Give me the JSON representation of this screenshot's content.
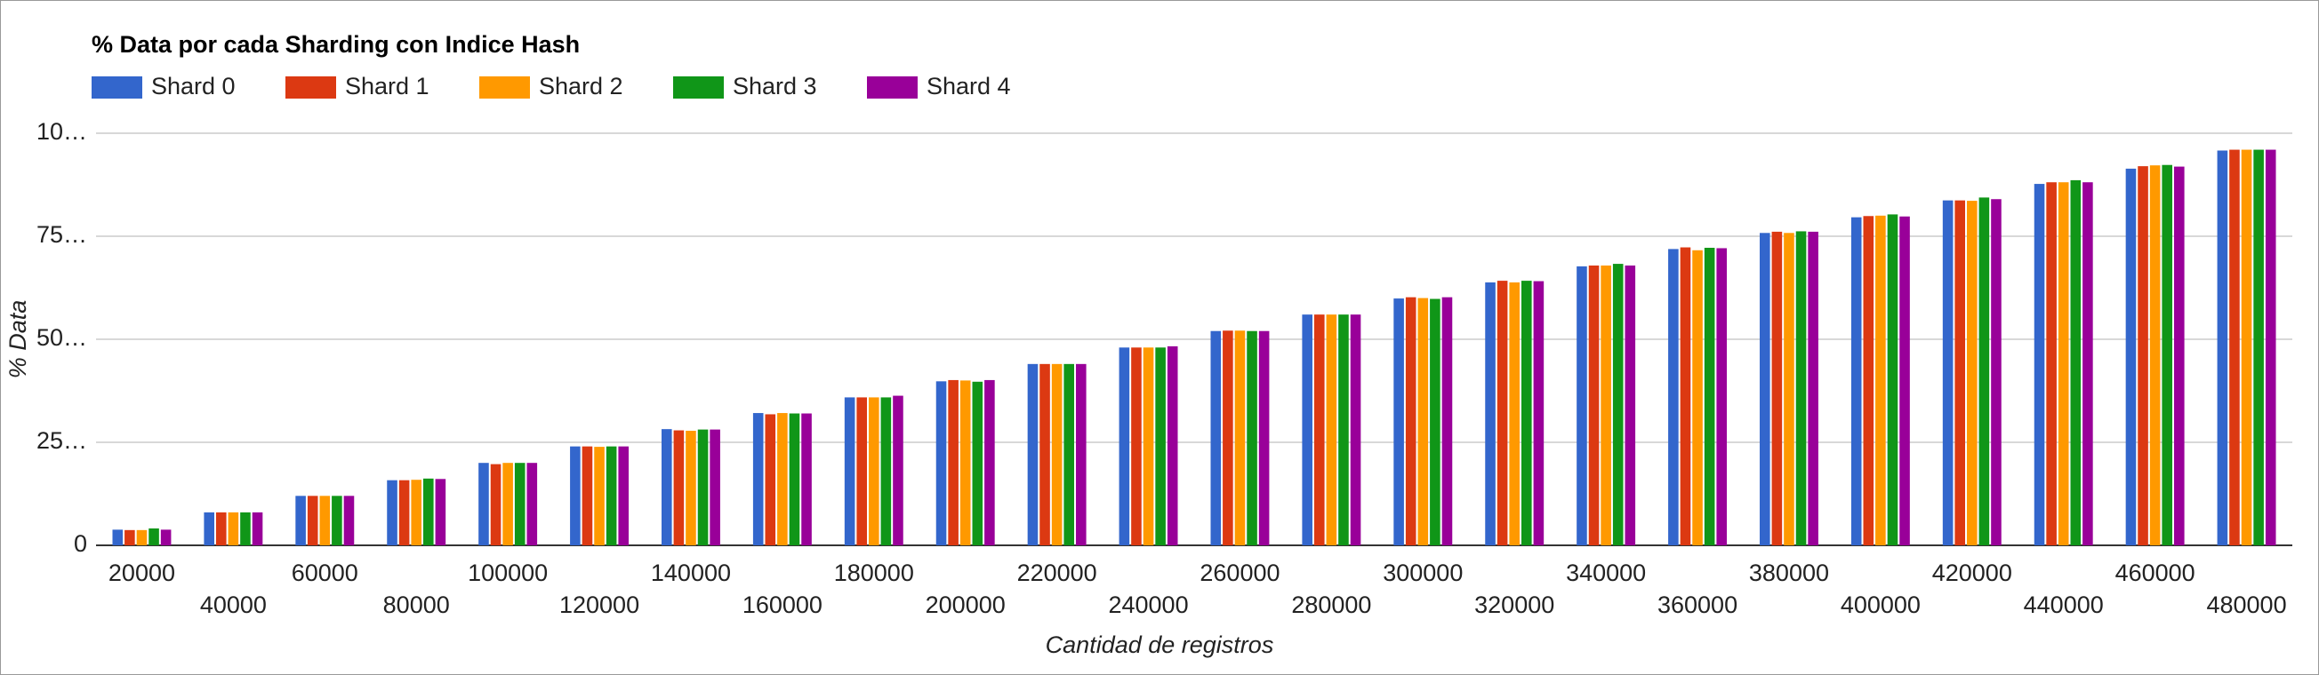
{
  "chart_data": {
    "type": "bar",
    "title": "% Data por cada Sharding con Indice Hash",
    "x_label": "Cantidad de registros",
    "y_label": "% Data",
    "categories": [
      "20000",
      "40000",
      "60000",
      "80000",
      "100000",
      "120000",
      "140000",
      "160000",
      "180000",
      "200000",
      "220000",
      "240000",
      "260000",
      "280000",
      "300000",
      "320000",
      "340000",
      "360000",
      "380000",
      "400000",
      "420000",
      "440000",
      "460000",
      "480000"
    ],
    "series": [
      {
        "name": "Shard 0",
        "color": "#3366cc",
        "values": [
          3.8,
          8,
          12,
          15.8,
          20,
          24,
          28.2,
          32.1,
          35.9,
          39.8,
          44,
          48,
          52,
          56,
          59.9,
          63.8,
          67.7,
          71.9,
          75.8,
          79.6,
          83.7,
          87.7,
          91.4,
          95.8
        ]
      },
      {
        "name": "Shard 1",
        "color": "#dc3912",
        "values": [
          3.7,
          8,
          12,
          15.8,
          19.7,
          24,
          27.9,
          31.8,
          35.9,
          40.1,
          44,
          48,
          52.1,
          56,
          60.2,
          64.2,
          67.9,
          72.3,
          76.1,
          79.9,
          83.7,
          88.1,
          92,
          96
        ]
      },
      {
        "name": "Shard 2",
        "color": "#ff9900",
        "values": [
          3.7,
          8,
          12,
          15.9,
          20,
          23.9,
          27.8,
          32.1,
          35.9,
          40,
          44,
          48,
          52.1,
          56,
          60,
          63.8,
          67.9,
          71.6,
          75.8,
          80,
          83.6,
          88.1,
          92.2,
          96
        ]
      },
      {
        "name": "Shard 3",
        "color": "#109618",
        "values": [
          4.1,
          8,
          12,
          16.2,
          20,
          24,
          28.1,
          32,
          35.9,
          39.7,
          44,
          48,
          52,
          56,
          59.8,
          64.2,
          68.3,
          72.2,
          76.2,
          80.3,
          84.4,
          88.6,
          92.3,
          96
        ]
      },
      {
        "name": "Shard 4",
        "color": "#990099",
        "values": [
          3.8,
          8,
          12,
          16.1,
          20,
          24,
          28.1,
          32,
          36.3,
          40.1,
          44,
          48.3,
          52,
          56,
          60.2,
          64.1,
          67.9,
          72.1,
          76.1,
          79.8,
          84,
          88.1,
          91.9,
          96
        ]
      }
    ],
    "ylim": [
      0,
      100
    ],
    "yticks": [
      0,
      {
        "value": 25,
        "label": "25…"
      },
      {
        "value": 50,
        "label": "50…"
      },
      {
        "value": 75,
        "label": "75…"
      },
      {
        "value": 100,
        "label": "10…"
      }
    ],
    "grid": true,
    "legend": "top"
  }
}
